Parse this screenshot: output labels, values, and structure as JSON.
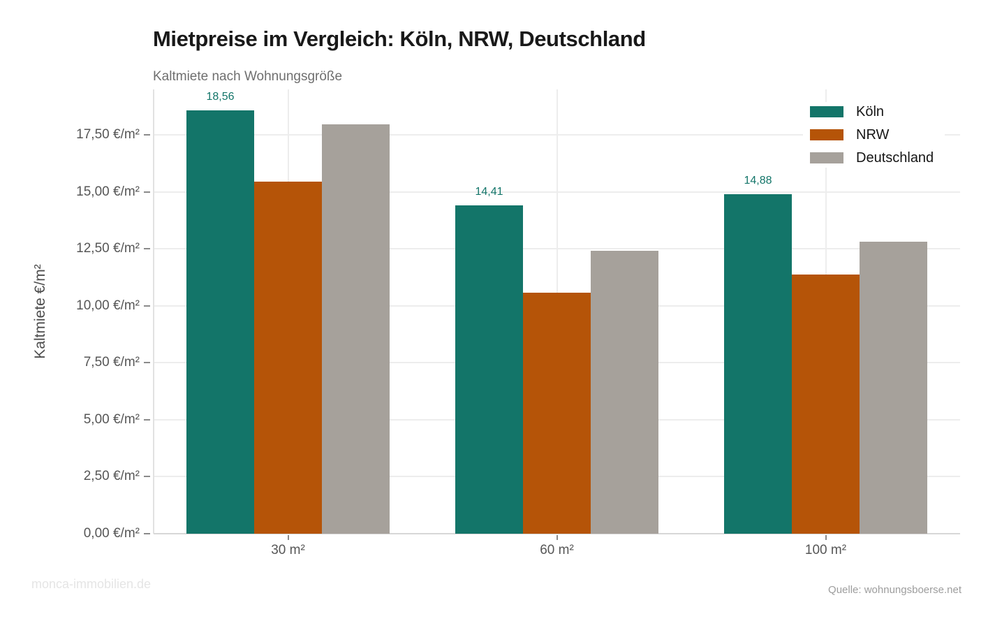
{
  "title": "Mietpreise im Vergleich: Köln, NRW, Deutschland",
  "subtitle": "Kaltmiete nach Wohnungsgröße",
  "watermark": "monca-immobilien.de",
  "source": "Quelle: wohnungsboerse.net",
  "chart_data": {
    "type": "bar",
    "title": "Mietpreise im Vergleich: Köln, NRW, Deutschland",
    "subtitle": "Kaltmiete nach Wohnungsgröße",
    "categories": [
      "30 m²",
      "60 m²",
      "100 m²"
    ],
    "series": [
      {
        "name": "Köln",
        "color": "#137569",
        "values": [
          18.56,
          14.41,
          14.88
        ],
        "labels": [
          "18,56",
          "14,41",
          "14,88"
        ]
      },
      {
        "name": "NRW",
        "color": "#b55408",
        "values": [
          15.44,
          10.58,
          11.36
        ]
      },
      {
        "name": "Deutschland",
        "color": "#a6a19b",
        "values": [
          17.96,
          12.42,
          12.82
        ]
      }
    ],
    "xlabel": "",
    "ylabel": "Kaltmiete €/m²",
    "ylim": [
      0,
      19.49
    ],
    "yticks": [
      0,
      2.5,
      5,
      7.5,
      10,
      12.5,
      15,
      17.5
    ],
    "ytick_labels": [
      "0,00 €/m²",
      "2,50 €/m²",
      "5,00 €/m²",
      "7,50 €/m²",
      "10,00 €/m²",
      "12,50 €/m²",
      "15,00 €/m²",
      "17,50 €/m²"
    ],
    "grid": true,
    "legend_position": "top-right"
  }
}
